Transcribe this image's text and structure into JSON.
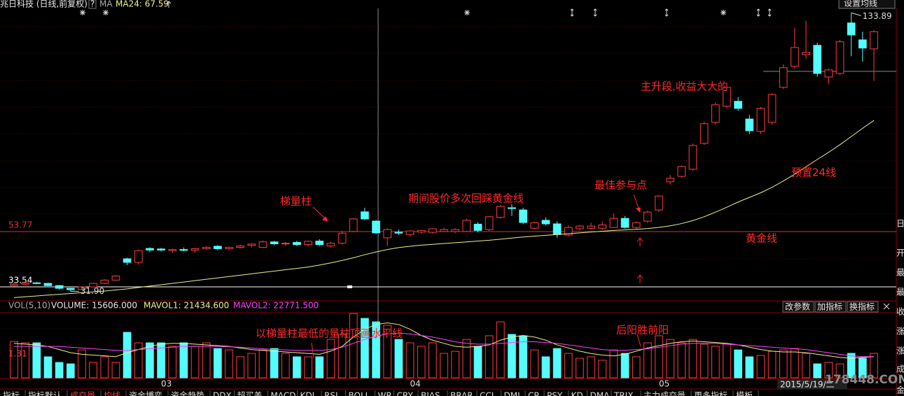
{
  "header": {
    "title": "兆日科技 (日线,前复权)",
    "help": "?",
    "ma": "MA",
    "ma24": "MA24: 67.59",
    "button": "设置均线"
  },
  "volume_header": {
    "name": "VOL(5,10)",
    "volume": "VOLUME: 15606.000",
    "mavol1": "MAVOL1: 21434.600",
    "mavol2": "MAVOL2: 22771.500",
    "scale": "1.31",
    "buttons": [
      "改参数",
      "加指标",
      "换指标"
    ]
  },
  "annotations": [
    "梯量柱",
    "期间股价多次回踩黄金线",
    "最佳参与点",
    "主升段,收益大大的",
    "预置24线",
    "黄金线",
    "以梯量柱最低的量柱顶画水平线",
    "后阳胜前阳"
  ],
  "right_panel": [
    "日",
    "开",
    "最",
    "最",
    "收",
    "涨",
    "涨",
    "成",
    "金"
  ],
  "date": "2015/5/19/二",
  "watermark": "178448.COM",
  "tabs": [
    "指标",
    "指标默认",
    "成交量",
    "均线",
    "资金博弈",
    "资金趋势",
    "DDX",
    "超买盖",
    "MACD",
    "KDJ",
    "RSI",
    "BOLL",
    "WR",
    "CRY",
    "BIAS",
    "BRAR",
    "CCI",
    "DMI",
    "CR",
    "PSY",
    "KD",
    "DMA",
    "TRIX",
    "主力成交量",
    "更多指标",
    "模板"
  ],
  "chart_data": {
    "type": "candlestick",
    "bull_color": "#ff3c3c",
    "bear_color": "#54fcfc",
    "ma_color": "#f0f08c",
    "categories": [
      null,
      null,
      null,
      null,
      null,
      null,
      null,
      null,
      null,
      null,
      null,
      null,
      null,
      "03",
      null,
      null,
      null,
      null,
      null,
      null,
      null,
      null,
      null,
      null,
      null,
      null,
      null,
      null,
      null,
      null,
      null,
      null,
      null,
      null,
      null,
      "04",
      null,
      null,
      null,
      null,
      null,
      null,
      null,
      null,
      null,
      null,
      null,
      null,
      null,
      null,
      null,
      null,
      null,
      null,
      null,
      null,
      null,
      "05",
      null,
      null,
      null,
      null,
      null,
      null,
      null,
      null,
      null,
      null,
      null,
      null,
      null,
      null,
      null,
      null,
      null,
      null,
      null
    ],
    "ylim": [
      28.4,
      138.6
    ],
    "open": [
      34,
      34.5,
      35,
      34.8,
      34,
      33,
      32.6,
      33.5,
      34.8,
      36,
      43.8,
      42.5,
      47.6,
      47.4,
      46.8,
      47.2,
      47,
      47.5,
      48.4,
      47.5,
      48,
      48.7,
      48,
      50,
      49.3,
      49.8,
      49,
      50.3,
      48.5,
      49.5,
      53.8,
      61,
      57.6,
      51.5,
      53.5,
      52.7,
      53.6,
      53.5,
      53.8,
      53.8,
      53.8,
      56.5,
      54.5,
      59,
      62.5,
      61.7,
      55,
      57.9,
      56.6,
      52.5,
      54.8,
      55,
      55,
      55.3,
      58.6,
      55.3,
      57.6,
      61.7,
      72,
      74,
      76.6,
      86.1,
      93.8,
      99.7,
      101.5,
      95,
      90.5,
      93.8,
      106.6,
      114.3,
      118.6,
      122,
      110.4,
      111.7,
      130.2,
      124,
      120.7
    ],
    "high": [
      35,
      35.5,
      35.3,
      35,
      34.2,
      33.2,
      33.8,
      35,
      36.3,
      37.8,
      44.2,
      47.2,
      48,
      47.8,
      47.5,
      48,
      47.8,
      48.5,
      48.8,
      48.3,
      49,
      49.5,
      50.5,
      50.4,
      50,
      50.4,
      50.5,
      51,
      50,
      54,
      58.8,
      62.5,
      58,
      55,
      54.5,
      54.2,
      54.5,
      55,
      55.2,
      55,
      58.5,
      57.2,
      59.5,
      63.5,
      63.8,
      62.5,
      57.5,
      59,
      57.5,
      56,
      56.2,
      57,
      57.5,
      60.5,
      59.5,
      57.5,
      61.5,
      67,
      74.5,
      78,
      86,
      94,
      101,
      107.5,
      103,
      96.5,
      99.5,
      104.5,
      115,
      128.4,
      131,
      123,
      113.5,
      124,
      133.89,
      127,
      127.5
    ],
    "low": [
      33.6,
      34.2,
      34.5,
      33.8,
      32.5,
      31.9,
      32.4,
      33.3,
      34.6,
      35.8,
      41.5,
      41.7,
      46.3,
      46.5,
      46,
      46.6,
      46,
      47,
      47,
      47,
      47.5,
      48,
      47.8,
      48.8,
      48.5,
      48.5,
      48.3,
      48.5,
      48,
      49,
      53.5,
      58,
      52.8,
      48.5,
      52.5,
      52,
      53,
      53,
      53.5,
      53.2,
      53.5,
      53.5,
      54,
      58.5,
      59.5,
      56.5,
      54.5,
      56,
      51.5,
      52,
      54.2,
      54.5,
      54.5,
      55,
      54.8,
      54.5,
      57,
      61,
      71,
      73.5,
      76,
      85.5,
      93,
      99,
      98,
      89.5,
      89.5,
      93,
      106,
      113.5,
      117,
      110.5,
      107.9,
      111,
      118,
      116,
      109
    ],
    "close": [
      34.5,
      35,
      34.8,
      34,
      33,
      32.5,
      33.5,
      34.8,
      36,
      37.5,
      42.5,
      46.8,
      47,
      47,
      47.2,
      46.9,
      47.5,
      48,
      47.5,
      48,
      48.5,
      49.2,
      50,
      49.3,
      49.5,
      49,
      50.2,
      49,
      49.5,
      53.2,
      58.4,
      58.4,
      53.3,
      54.5,
      53.2,
      54,
      54.2,
      54.8,
      54.5,
      54.5,
      57.9,
      54.2,
      59.2,
      63,
      62.2,
      57.1,
      57,
      56.6,
      52.7,
      55.3,
      55.8,
      55.8,
      56.2,
      58.6,
      55.3,
      57,
      60.9,
      66.8,
      73.3,
      77.6,
      85.3,
      93.3,
      100.2,
      106.6,
      98.9,
      90.7,
      98.9,
      104,
      113.8,
      121.2,
      119.4,
      111.7,
      113,
      123.3,
      125.8,
      121,
      127
    ],
    "ma24": [
      29.6,
      29.9,
      30.2,
      30.5,
      30.8,
      31.1,
      31.4,
      31.7,
      32,
      32.4,
      32.8,
      33.3,
      33.8,
      34.3,
      34.8,
      35.3,
      35.8,
      36.3,
      36.8,
      37.3,
      37.8,
      38.3,
      38.8,
      39.3,
      39.8,
      40.3,
      40.8,
      41.5,
      42.3,
      43.2,
      44.2,
      45.3,
      46.3,
      47.2,
      47.9,
      48.4,
      48.8,
      49.1,
      49.4,
      49.7,
      50,
      50.3,
      50.6,
      51,
      51.4,
      51.8,
      52.1,
      52.4,
      52.7,
      53,
      53.3,
      53.6,
      53.9,
      54.2,
      54.4,
      54.6,
      54.9,
      55.3,
      55.9,
      56.7,
      57.8,
      59.2,
      60.9,
      62.7,
      64.6,
      66.3,
      68,
      70,
      72.3,
      74.8,
      77.5,
      80.2,
      82.8,
      85.6,
      88.6,
      91.6,
      94.5
    ],
    "hlines": [
      {
        "value": 53.77,
        "color": "#e03030"
      },
      {
        "value": 33.54,
        "color": "#ffffff"
      }
    ],
    "high_mark": 133.89,
    "low_mark": {
      "value": 31.9,
      "label": "31.90"
    },
    "volume_lim": [
      0,
      41500
    ],
    "volume": [
      23200,
      22300,
      22300,
      13400,
      9800,
      8900,
      17800,
      9800,
      13400,
      9800,
      29000,
      22300,
      22300,
      22300,
      20100,
      22300,
      20100,
      22300,
      18700,
      17800,
      13400,
      15600,
      17800,
      18700,
      15600,
      13400,
      13400,
      13400,
      24500,
      27700,
      41000,
      37900,
      35700,
      33500,
      24500,
      22300,
      20100,
      22300,
      15600,
      16900,
      24500,
      20100,
      26800,
      35700,
      27700,
      26800,
      17800,
      13400,
      18700,
      15600,
      12500,
      13400,
      11200,
      17800,
      15600,
      13400,
      22300,
      26800,
      24500,
      22300,
      24500,
      21400,
      20100,
      21400,
      17800,
      13400,
      14300,
      16900,
      17800,
      18700,
      15600,
      8900,
      9800,
      8900,
      15600,
      12500,
      15606
    ],
    "mavol1": [
      22000,
      21500,
      21000,
      20000,
      18000,
      16000,
      15000,
      14500,
      14000,
      13500,
      16000,
      18000,
      20000,
      21500,
      22000,
      22000,
      21500,
      21000,
      20500,
      20000,
      19000,
      18000,
      17500,
      17000,
      16500,
      16000,
      15500,
      15000,
      17000,
      20000,
      26000,
      31000,
      34000,
      35000,
      34000,
      31000,
      27000,
      24000,
      22000,
      20000,
      19500,
      20000,
      21000,
      24000,
      26000,
      27000,
      26000,
      24000,
      21000,
      19000,
      17000,
      15500,
      14500,
      14000,
      15000,
      17000,
      19000,
      20500,
      22000,
      23000,
      23500,
      23000,
      22500,
      22000,
      21000,
      19500,
      18000,
      17000,
      16500,
      16500,
      16000,
      15000,
      14000,
      13000,
      12500,
      13000,
      13500
    ],
    "mavol2": [
      20000,
      20000,
      20000,
      20000,
      20000,
      19500,
      19000,
      18500,
      18000,
      17500,
      17500,
      18000,
      18500,
      19000,
      19500,
      20000,
      20000,
      20000,
      20000,
      19800,
      19500,
      19000,
      18500,
      18000,
      17800,
      17500,
      17500,
      17500,
      18000,
      19500,
      22000,
      24500,
      26500,
      28000,
      28500,
      28000,
      27000,
      26000,
      24500,
      23000,
      22000,
      21500,
      21500,
      22000,
      22500,
      23000,
      23000,
      22500,
      22000,
      21000,
      20000,
      19000,
      18000,
      17500,
      17500,
      18000,
      18500,
      19500,
      20500,
      21500,
      22000,
      22000,
      22000,
      21500,
      21000,
      20500,
      20000,
      19500,
      19000,
      18500,
      18000,
      17000,
      16000,
      15000,
      14000,
      13500,
      13500
    ],
    "mavol1_color": "#f0f08c",
    "mavol2_color": "#ff40ff"
  }
}
